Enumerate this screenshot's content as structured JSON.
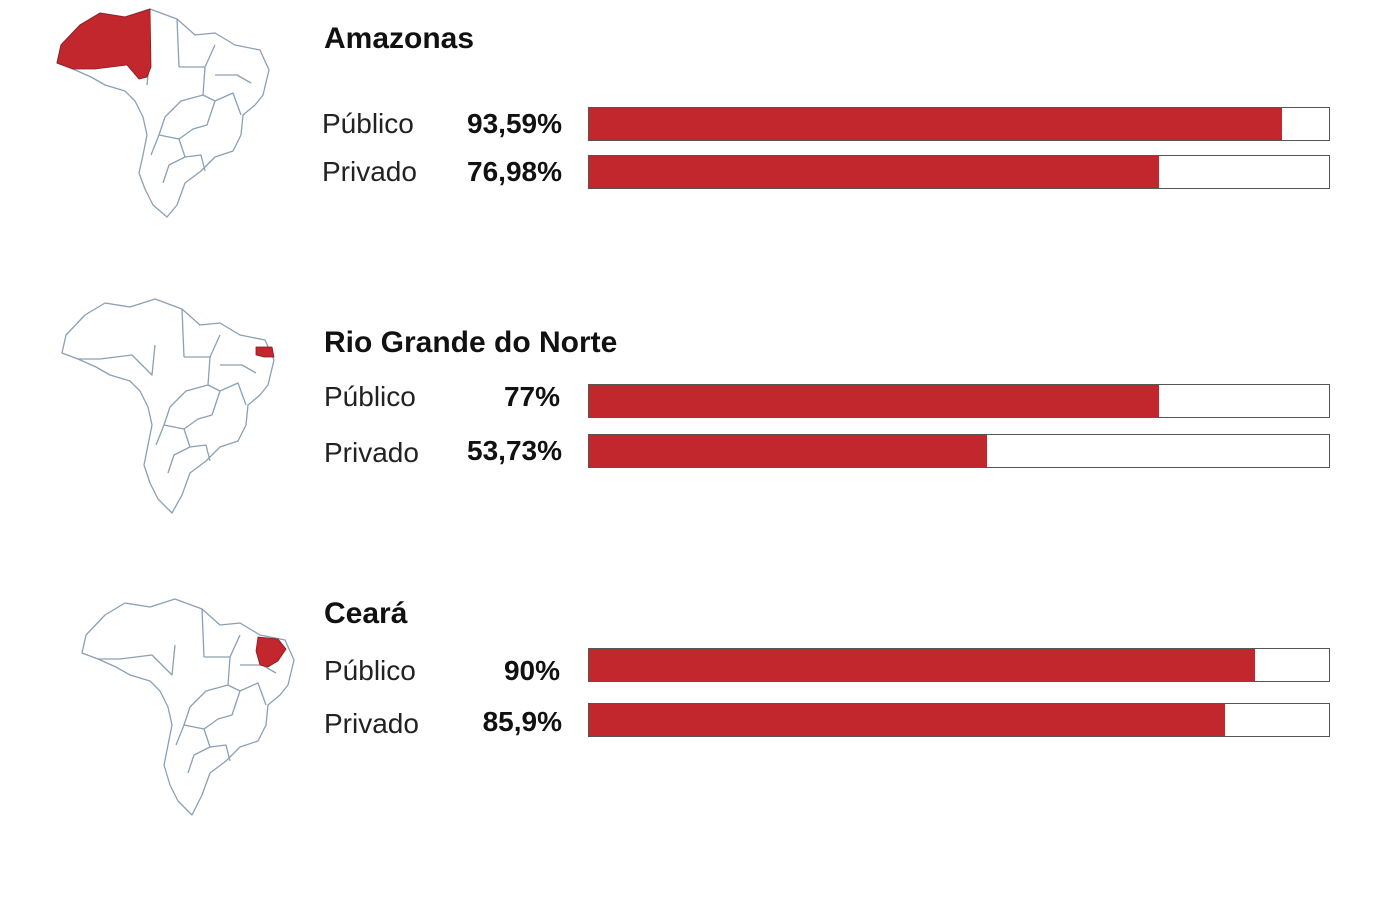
{
  "chart_data": {
    "type": "bar",
    "categories": [
      "Público",
      "Privado"
    ],
    "xlim": [
      0,
      100
    ],
    "colors": {
      "fill": "#c1272d",
      "map_outline": "#8aa0b5",
      "track_border": "#555555"
    },
    "states": [
      {
        "name": "Amazonas",
        "highlight_state": "Amazonas",
        "rows": [
          {
            "label": "Público",
            "value_text": "93,59%",
            "value": 93.59
          },
          {
            "label": "Privado",
            "value_text": "76,98%",
            "value": 76.98
          }
        ]
      },
      {
        "name": "Rio Grande do Norte",
        "highlight_state": "Rio Grande do Norte",
        "rows": [
          {
            "label": "Público",
            "value_text": "77%",
            "value": 77
          },
          {
            "label": "Privado",
            "value_text": "53,73%",
            "value": 53.73
          }
        ]
      },
      {
        "name": "Ceará",
        "highlight_state": "Ceará",
        "rows": [
          {
            "label": "Público",
            "value_text": "90%",
            "value": 90
          },
          {
            "label": "Privado",
            "value_text": "85,9%",
            "value": 85.9
          }
        ]
      }
    ]
  }
}
